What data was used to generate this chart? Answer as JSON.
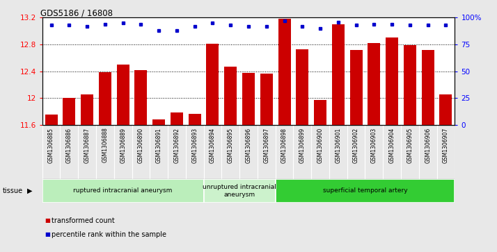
{
  "title": "GDS5186 / 16808",
  "samples": [
    "GSM1306885",
    "GSM1306886",
    "GSM1306887",
    "GSM1306888",
    "GSM1306889",
    "GSM1306890",
    "GSM1306891",
    "GSM1306892",
    "GSM1306893",
    "GSM1306894",
    "GSM1306895",
    "GSM1306896",
    "GSM1306897",
    "GSM1306898",
    "GSM1306899",
    "GSM1306900",
    "GSM1306901",
    "GSM1306902",
    "GSM1306903",
    "GSM1306904",
    "GSM1306905",
    "GSM1306906",
    "GSM1306907"
  ],
  "bar_values": [
    11.75,
    12.0,
    12.05,
    12.38,
    12.5,
    12.42,
    11.68,
    11.78,
    11.76,
    12.81,
    12.47,
    12.37,
    12.36,
    13.18,
    12.73,
    11.97,
    13.1,
    12.72,
    12.82,
    12.9,
    12.79,
    12.72,
    12.05
  ],
  "percentile_values": [
    93,
    93,
    92,
    94,
    95,
    94,
    88,
    88,
    92,
    95,
    93,
    92,
    92,
    97,
    92,
    90,
    96,
    93,
    94,
    94,
    93,
    93,
    93
  ],
  "ylim_left": [
    11.6,
    13.2
  ],
  "ylim_right": [
    0,
    100
  ],
  "yticks_left": [
    11.6,
    12.0,
    12.4,
    12.8,
    13.2
  ],
  "yticks_right": [
    0,
    25,
    50,
    75,
    100
  ],
  "bar_color": "#cc0000",
  "dot_color": "#0000cc",
  "bg_color": "#d4d4d4",
  "plot_bg": "#ffffff",
  "tissue_groups": [
    {
      "label": "ruptured intracranial aneurysm",
      "start": 0,
      "end": 9,
      "color": "#bbeebb"
    },
    {
      "label": "unruptured intracranial\naneurysm",
      "start": 9,
      "end": 13,
      "color": "#ccf2cc"
    },
    {
      "label": "superficial temporal artery",
      "start": 13,
      "end": 23,
      "color": "#33cc33"
    }
  ],
  "legend_items": [
    {
      "label": "transformed count",
      "color": "#cc0000"
    },
    {
      "label": "percentile rank within the sample",
      "color": "#0000cc"
    }
  ],
  "tissue_label": "tissue",
  "grid_linestyle": "dotted",
  "fig_bg": "#e8e8e8"
}
